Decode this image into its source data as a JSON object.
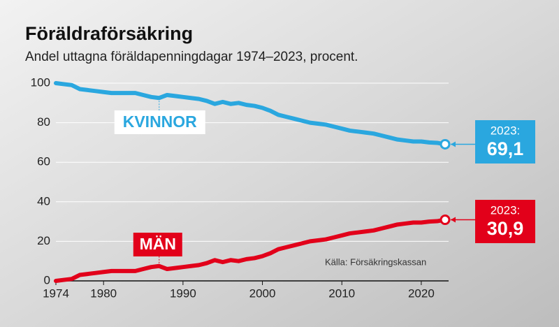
{
  "chart_data": {
    "type": "line",
    "title": "Föräldraförsäkring",
    "subtitle": "Andel uttagna föräldapenningdagar 1974–2023, procent.",
    "source": "Källa: Försäkringskassan",
    "x": [
      1974,
      1975,
      1976,
      1977,
      1978,
      1979,
      1980,
      1981,
      1982,
      1983,
      1984,
      1985,
      1986,
      1987,
      1988,
      1989,
      1990,
      1991,
      1992,
      1993,
      1994,
      1995,
      1996,
      1997,
      1998,
      1999,
      2000,
      2001,
      2002,
      2003,
      2004,
      2005,
      2006,
      2007,
      2008,
      2009,
      2010,
      2011,
      2012,
      2013,
      2014,
      2015,
      2016,
      2017,
      2018,
      2019,
      2020,
      2021,
      2022,
      2023
    ],
    "series": [
      {
        "name": "KVINNOR",
        "color": "#2aa7df",
        "end_label_title": "2023:",
        "values": [
          100,
          99.5,
          99,
          97,
          96.5,
          96,
          95.5,
          95,
          95,
          95,
          95,
          94,
          93,
          92.5,
          94,
          93.5,
          93,
          92.5,
          92,
          91,
          89.5,
          90.5,
          89.5,
          90,
          89,
          88.5,
          87.5,
          86,
          84,
          83,
          82,
          81,
          80,
          79.5,
          79,
          78,
          77,
          76,
          75.5,
          75,
          74.5,
          73.5,
          72.5,
          71.5,
          71,
          70.5,
          70.5,
          70,
          69.8,
          69.1
        ],
        "value_labels": [
          null,
          null,
          null,
          null,
          null,
          null,
          null,
          null,
          null,
          null,
          null,
          null,
          null,
          null,
          null,
          null,
          null,
          null,
          null,
          null,
          null,
          null,
          null,
          null,
          null,
          null,
          null,
          null,
          null,
          null,
          null,
          null,
          null,
          null,
          null,
          null,
          null,
          null,
          null,
          null,
          null,
          null,
          null,
          null,
          null,
          null,
          null,
          null,
          null,
          "69,1"
        ]
      },
      {
        "name": "MÄN",
        "color": "#e2001a",
        "end_label_title": "2023:",
        "values": [
          0,
          0.5,
          1,
          3,
          3.5,
          4,
          4.5,
          5,
          5,
          5,
          5,
          6,
          7,
          7.5,
          6,
          6.5,
          7,
          7.5,
          8,
          9,
          10.5,
          9.5,
          10.5,
          10,
          11,
          11.5,
          12.5,
          14,
          16,
          17,
          18,
          19,
          20,
          20.5,
          21,
          22,
          23,
          24,
          24.5,
          25,
          25.5,
          26.5,
          27.5,
          28.5,
          29,
          29.5,
          29.5,
          30,
          30.2,
          30.9
        ],
        "value_labels": [
          null,
          null,
          null,
          null,
          null,
          null,
          null,
          null,
          null,
          null,
          null,
          null,
          null,
          null,
          null,
          null,
          null,
          null,
          null,
          null,
          null,
          null,
          null,
          null,
          null,
          null,
          null,
          null,
          null,
          null,
          null,
          null,
          null,
          null,
          null,
          null,
          null,
          null,
          null,
          null,
          null,
          null,
          null,
          null,
          null,
          null,
          null,
          null,
          null,
          "30,9"
        ]
      }
    ],
    "xlim": [
      1974,
      2023
    ],
    "xticks": [
      1974,
      1980,
      1990,
      2000,
      2010,
      2020
    ],
    "ylim": [
      0,
      100
    ],
    "yticks": [
      0,
      20,
      40,
      60,
      80,
      100
    ],
    "grid": true
  }
}
